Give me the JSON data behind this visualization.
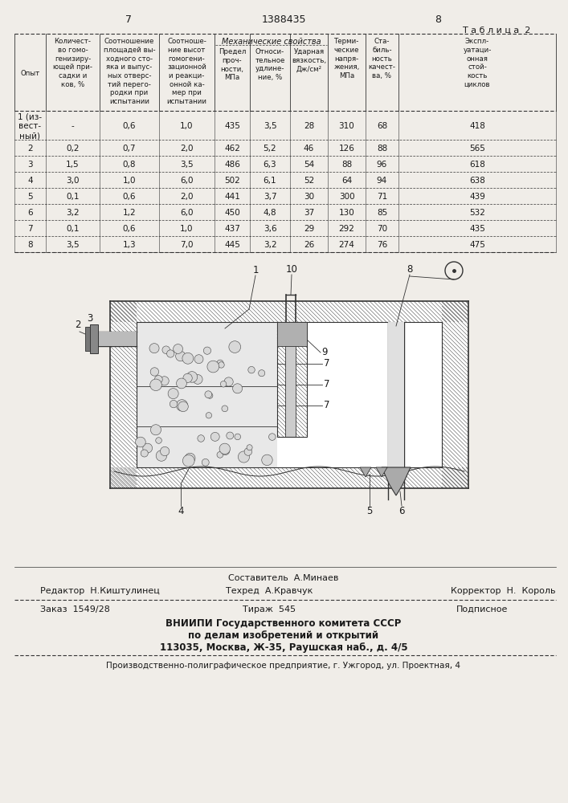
{
  "page_num_left": "7",
  "page_num_center": "1388435",
  "page_num_right": "8",
  "table_title": "Т а б л и ц а  2",
  "mech_header": "Механические свойства",
  "rows": [
    [
      "1 (из-\nвест-\nный)",
      "-",
      "0,6",
      "1,0",
      "435",
      "3,5",
      "28",
      "310",
      "68",
      "418"
    ],
    [
      "2",
      "0,2",
      "0,7",
      "2,0",
      "462",
      "5,2",
      "46",
      "126",
      "88",
      "565"
    ],
    [
      "3",
      "1,5",
      "0,8",
      "3,5",
      "486",
      "6,3",
      "54",
      "88",
      "96",
      "618"
    ],
    [
      "4",
      "3,0",
      "1,0",
      "6,0",
      "502",
      "6,1",
      "52",
      "64",
      "94",
      "638"
    ],
    [
      "5",
      "0,1",
      "0,6",
      "2,0",
      "441",
      "3,7",
      "30",
      "300",
      "71",
      "439"
    ],
    [
      "6",
      "3,2",
      "1,2",
      "6,0",
      "450",
      "4,8",
      "37",
      "130",
      "85",
      "532"
    ],
    [
      "7",
      "0,1",
      "0,6",
      "1,0",
      "437",
      "3,6",
      "29",
      "292",
      "70",
      "435"
    ],
    [
      "8",
      "3,5",
      "1,3",
      "7,0",
      "445",
      "3,2",
      "26",
      "274",
      "76",
      "475"
    ]
  ],
  "footer_line1": "Составитель  А.Минаев",
  "footer_line2_left": "Редактор  Н.Киштулинец",
  "footer_line2_mid": "Техред  А.Кравчук",
  "footer_line2_right": "Корректор  Н.  Король",
  "footer_line3_left": "Заказ  1549/28",
  "footer_line3_mid": "Тираж  545",
  "footer_line3_right": "Подписное",
  "footer_org1": "ВНИИПИ Государственного комитета СССР",
  "footer_org2": "по делам изобретений и открытий",
  "footer_org3": "113035, Москва, Ж-35, Раушская наб., д. 4/5",
  "footer_prod": "Производственно-полиграфическое предприятие, г. Ужгород, ул. Проектная, 4",
  "bg_color": "#f0ede8",
  "text_color": "#1a1a1a",
  "line_color": "#333333"
}
